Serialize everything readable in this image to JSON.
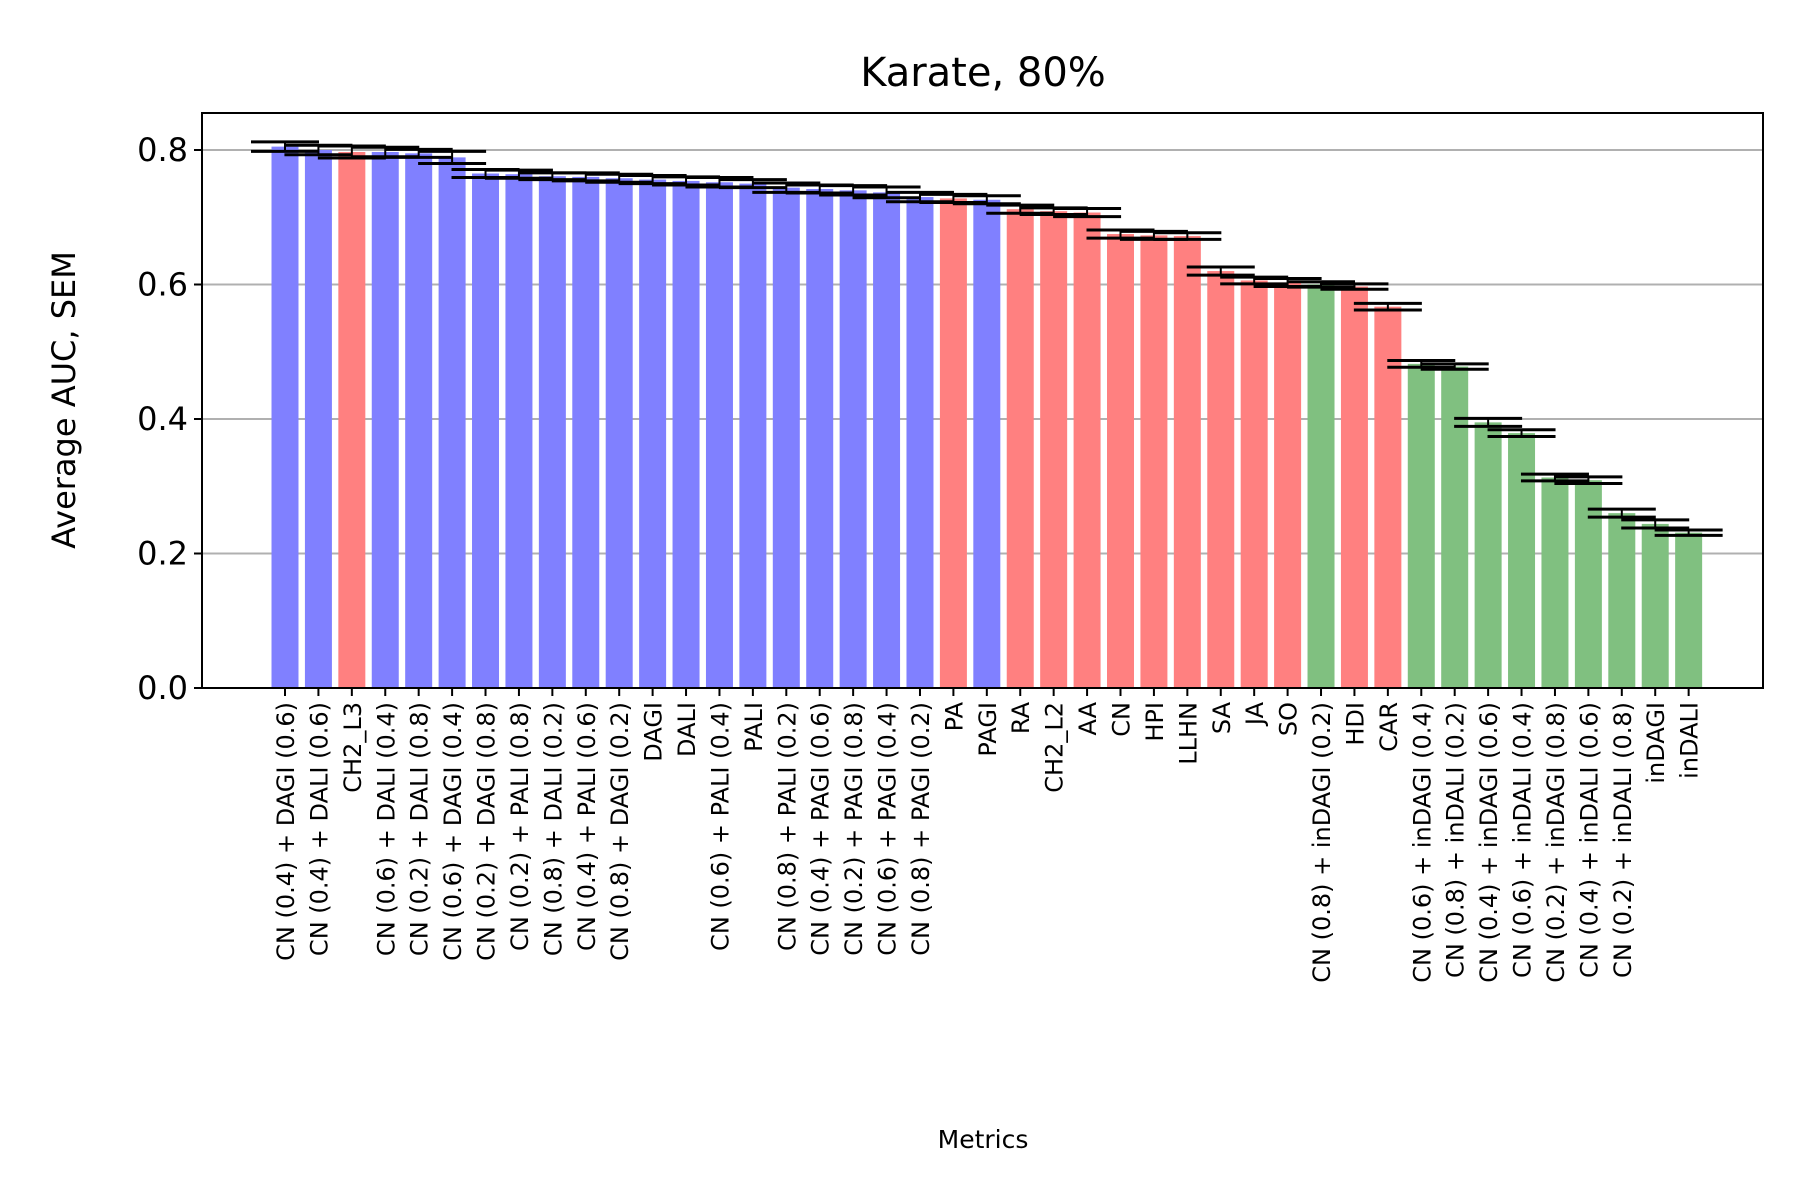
{
  "chart_data": {
    "type": "bar",
    "title": "Karate, 80%",
    "xlabel": "Metrics",
    "ylabel": "Average AUC, SEM",
    "ylim": [
      0,
      0.855
    ],
    "yticks": [
      "0.0",
      "0.2",
      "0.4",
      "0.6",
      "0.8"
    ],
    "grid": "horizontal",
    "colors": {
      "blue": "#8080ff",
      "red": "#ff8080",
      "green": "#80c080",
      "error": "#000000",
      "grid": "#b0b0b0"
    },
    "categories": [
      "CN (0.4) + DAGI (0.6)",
      "CN (0.4) + DALI (0.6)",
      "CH2_L3",
      "CN (0.6) + DALI (0.4)",
      "CN (0.2) + DALI (0.8)",
      "CN (0.6) + DAGI (0.4)",
      "CN (0.2) + DAGI (0.8)",
      "CN (0.2) + PALI (0.8)",
      "CN (0.8) + DALI (0.2)",
      "CN (0.4) + PALI (0.6)",
      "CN (0.8) + DAGI (0.2)",
      "DAGI",
      "DALI",
      "CN (0.6) + PALI (0.4)",
      "PALI",
      "CN (0.8) + PALI (0.2)",
      "CN (0.4) + PAGI (0.6)",
      "CN (0.2) + PAGI (0.8)",
      "CN (0.6) + PAGI (0.4)",
      "CN (0.8) + PAGI (0.2)",
      "PA",
      "PAGI",
      "RA",
      "CH2_L2",
      "AA",
      "CN",
      "HPI",
      "LLHN",
      "SA",
      "JA",
      "SO",
      "CN (0.8) + inDAGI (0.2)",
      "HDI",
      "CAR",
      "CN (0.6) + inDAGI (0.4)",
      "CN (0.8) + inDALI (0.2)",
      "CN (0.4) + inDAGI (0.6)",
      "CN (0.6) + inDALI (0.4)",
      "CN (0.2) + inDAGI (0.8)",
      "CN (0.4) + inDALI (0.6)",
      "CN (0.2) + inDALI (0.8)",
      "inDAGI",
      "inDALI"
    ],
    "values": [
      0.805,
      0.8,
      0.797,
      0.797,
      0.795,
      0.789,
      0.765,
      0.764,
      0.761,
      0.76,
      0.758,
      0.756,
      0.754,
      0.752,
      0.75,
      0.744,
      0.742,
      0.74,
      0.737,
      0.73,
      0.728,
      0.726,
      0.712,
      0.709,
      0.707,
      0.675,
      0.673,
      0.672,
      0.62,
      0.606,
      0.603,
      0.6,
      0.597,
      0.567,
      0.482,
      0.478,
      0.395,
      0.379,
      0.313,
      0.309,
      0.26,
      0.244,
      0.231
    ],
    "errors": [
      0.007,
      0.007,
      0.009,
      0.007,
      0.006,
      0.009,
      0.006,
      0.006,
      0.005,
      0.006,
      0.006,
      0.006,
      0.006,
      0.007,
      0.006,
      0.007,
      0.006,
      0.007,
      0.008,
      0.007,
      0.006,
      0.006,
      0.006,
      0.005,
      0.006,
      0.006,
      0.006,
      0.005,
      0.006,
      0.005,
      0.006,
      0.004,
      0.004,
      0.005,
      0.005,
      0.004,
      0.006,
      0.005,
      0.005,
      0.005,
      0.006,
      0.006,
      0.004
    ],
    "bar_colors": [
      "blue",
      "blue",
      "red",
      "blue",
      "blue",
      "blue",
      "blue",
      "blue",
      "blue",
      "blue",
      "blue",
      "blue",
      "blue",
      "blue",
      "blue",
      "blue",
      "blue",
      "blue",
      "blue",
      "blue",
      "red",
      "blue",
      "red",
      "red",
      "red",
      "red",
      "red",
      "red",
      "red",
      "red",
      "red",
      "green",
      "red",
      "red",
      "green",
      "green",
      "green",
      "green",
      "green",
      "green",
      "green",
      "green",
      "green"
    ]
  }
}
